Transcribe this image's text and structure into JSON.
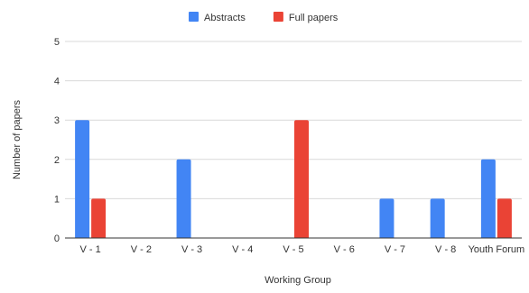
{
  "chart_data": {
    "type": "bar",
    "title": "",
    "xlabel": "Working Group",
    "ylabel": "Number of papers",
    "categories": [
      "V - 1",
      "V - 2",
      "V - 3",
      "V - 4",
      "V - 5",
      "V - 6",
      "V - 7",
      "V - 8",
      "Youth Forum"
    ],
    "series": [
      {
        "name": "Abstracts",
        "color": "#4285F4",
        "values": [
          3,
          0,
          2,
          0,
          0,
          0,
          1,
          1,
          2
        ]
      },
      {
        "name": "Full papers",
        "color": "#EA4335",
        "values": [
          1,
          0,
          0,
          0,
          3,
          0,
          0,
          0,
          1
        ]
      }
    ],
    "ylim": [
      0,
      5
    ],
    "yticks": [
      0,
      1,
      2,
      3,
      4,
      5
    ],
    "grid": true,
    "legend_position": "top"
  }
}
